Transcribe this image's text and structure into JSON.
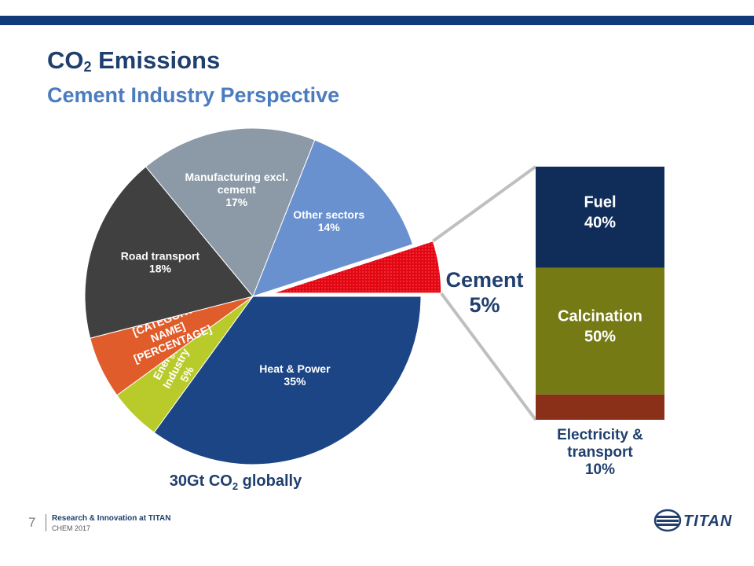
{
  "header": {
    "title_main": "CO",
    "title_sub": "2",
    "title_rest": " Emissions",
    "subtitle": "Cement Industry Perspective"
  },
  "chart_data": [
    {
      "type": "pie",
      "slices": [
        {
          "label": "Heat & Power",
          "value": 35,
          "value_label": "35%",
          "color": "#1c4585"
        },
        {
          "label": "Energy Industry",
          "value": 5,
          "value_label": "5%",
          "color": "#b8cb2a"
        },
        {
          "label": "[CATEGORY NAME]",
          "value": 6,
          "value_label": "[PERCENTAGE]",
          "color": "#e05c2a"
        },
        {
          "label": "Road transport",
          "value": 18,
          "value_label": "18%",
          "color": "#404040"
        },
        {
          "label": "Manufacturing excl. cement",
          "value": 17,
          "value_label": "17%",
          "color": "#8c9aa7"
        },
        {
          "label": "Other sectors",
          "value": 14,
          "value_label": "14%",
          "color": "#6a91cf"
        },
        {
          "label": "Cement",
          "value": 5,
          "value_label": "5%",
          "color": "#e30613"
        }
      ],
      "caption_prefix": "30Gt CO",
      "caption_sub": "2",
      "caption_suffix": " globally"
    },
    {
      "type": "bar",
      "stacked": true,
      "segments": [
        {
          "label": "Fuel",
          "value": 40,
          "value_label": "40%",
          "color": "#0f2d58"
        },
        {
          "label": "Calcination",
          "value": 50,
          "value_label": "50%",
          "color": "#757a15"
        },
        {
          "label": "Electricity & transport",
          "value": 10,
          "value_label": "10%",
          "color": "#8b3018"
        }
      ]
    }
  ],
  "footer": {
    "page_number": "7",
    "line1": "Research & Innovation at TITAN",
    "line2": "CHEM 2017",
    "logo_text": "TITAN"
  }
}
